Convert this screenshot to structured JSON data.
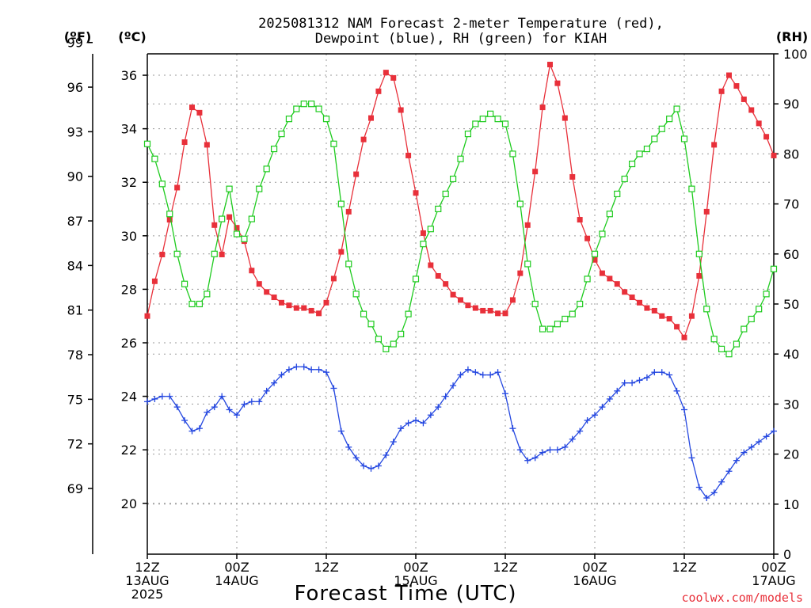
{
  "chart_data": {
    "type": "line",
    "title_line1": "2025081312 NAM Forecast 2-meter Temperature (red),",
    "title_line2": "Dewpoint (blue), RH (green) for KIAH",
    "unit_f": "(ºF)",
    "unit_c": "(ºC)",
    "unit_rh": "(RH)",
    "xlabel": "Forecast Time (UTC)",
    "credit": "coolwx.com/models",
    "x_hours": [
      0,
      1,
      2,
      3,
      4,
      5,
      6,
      7,
      8,
      9,
      10,
      11,
      12,
      13,
      14,
      15,
      16,
      17,
      18,
      19,
      20,
      21,
      22,
      23,
      24,
      25,
      26,
      27,
      28,
      29,
      30,
      31,
      32,
      33,
      34,
      35,
      36,
      37,
      38,
      39,
      40,
      41,
      42,
      43,
      44,
      45,
      46,
      47,
      48,
      49,
      50,
      51,
      52,
      53,
      54,
      55,
      56,
      57,
      58,
      59,
      60,
      61,
      62,
      63,
      64,
      65,
      66,
      67,
      68,
      69,
      70,
      71,
      72,
      73,
      74,
      75,
      76,
      77,
      78,
      79,
      80,
      81,
      82,
      83,
      84
    ],
    "x_range_hours": [
      0,
      84
    ],
    "x_ticks": [
      {
        "hour": 0,
        "line1": "12Z",
        "line2": "13AUG",
        "line3": "2025"
      },
      {
        "hour": 12,
        "line1": "00Z",
        "line2": "14AUG",
        "line3": ""
      },
      {
        "hour": 24,
        "line1": "12Z",
        "line2": "",
        "line3": ""
      },
      {
        "hour": 36,
        "line1": "00Z",
        "line2": "15AUG",
        "line3": ""
      },
      {
        "hour": 48,
        "line1": "12Z",
        "line2": "",
        "line3": ""
      },
      {
        "hour": 60,
        "line1": "00Z",
        "line2": "16AUG",
        "line3": ""
      },
      {
        "hour": 72,
        "line1": "12Z",
        "line2": "",
        "line3": ""
      },
      {
        "hour": 84,
        "line1": "00Z",
        "line2": "17AUG",
        "line3": ""
      }
    ],
    "y_left_c_range": [
      18.1,
      36.8
    ],
    "y_left_c_ticks": [
      "20",
      "22",
      "24",
      "26",
      "28",
      "30",
      "32",
      "34",
      "36"
    ],
    "y_left_f_ticks": [
      "69",
      "72",
      "75",
      "78",
      "81",
      "84",
      "87",
      "90",
      "93",
      "96",
      "99"
    ],
    "y_right_rh_range": [
      0,
      100
    ],
    "y_right_rh_ticks": [
      "0",
      "10",
      "20",
      "30",
      "40",
      "50",
      "60",
      "70",
      "80",
      "90",
      "100"
    ],
    "grid": true,
    "series": [
      {
        "name": "Temperature",
        "unit": "C",
        "color": "#e8303a",
        "marker": "filled-square",
        "values": [
          27.0,
          28.3,
          29.3,
          30.6,
          31.8,
          33.5,
          34.8,
          34.6,
          33.4,
          30.4,
          29.3,
          30.7,
          30.3,
          29.8,
          28.7,
          28.2,
          27.9,
          27.7,
          27.5,
          27.4,
          27.3,
          27.3,
          27.2,
          27.1,
          27.5,
          28.4,
          29.4,
          30.9,
          32.3,
          33.6,
          34.4,
          35.4,
          36.1,
          35.9,
          34.7,
          33.0,
          31.6,
          30.1,
          28.9,
          28.5,
          28.2,
          27.8,
          27.6,
          27.4,
          27.3,
          27.2,
          27.2,
          27.1,
          27.1,
          27.6,
          28.6,
          30.4,
          32.4,
          34.8,
          36.4,
          35.7,
          34.4,
          32.2,
          30.6,
          29.9,
          29.1,
          28.6,
          28.4,
          28.2,
          27.9,
          27.7,
          27.5,
          27.3,
          27.2,
          27.0,
          26.9,
          26.6,
          26.2,
          27.0,
          28.5,
          30.9,
          33.4,
          35.4,
          36.0,
          35.6,
          35.1,
          34.7,
          34.2,
          33.7,
          33.0
        ]
      },
      {
        "name": "Dewpoint",
        "unit": "C",
        "color": "#2447e0",
        "marker": "plus",
        "values": [
          23.8,
          23.9,
          24.0,
          24.0,
          23.6,
          23.1,
          22.7,
          22.8,
          23.4,
          23.6,
          24.0,
          23.5,
          23.3,
          23.7,
          23.8,
          23.8,
          24.2,
          24.5,
          24.8,
          25.0,
          25.1,
          25.1,
          25.0,
          25.0,
          24.9,
          24.3,
          22.7,
          22.1,
          21.7,
          21.4,
          21.3,
          21.4,
          21.8,
          22.3,
          22.8,
          23.0,
          23.1,
          23.0,
          23.3,
          23.6,
          24.0,
          24.4,
          24.8,
          25.0,
          24.9,
          24.8,
          24.8,
          24.9,
          24.1,
          22.8,
          22.0,
          21.6,
          21.7,
          21.9,
          22.0,
          22.0,
          22.1,
          22.4,
          22.7,
          23.1,
          23.3,
          23.6,
          23.9,
          24.2,
          24.5,
          24.5,
          24.6,
          24.7,
          24.9,
          24.9,
          24.8,
          24.2,
          23.5,
          21.7,
          20.6,
          20.2,
          20.4,
          20.8,
          21.2,
          21.6,
          21.9,
          22.1,
          22.3,
          22.5,
          22.7
        ]
      },
      {
        "name": "RH",
        "unit": "%",
        "color": "#1ecb1e",
        "marker": "open-square",
        "values": [
          82.0,
          79.0,
          74.0,
          68.0,
          60.0,
          54.0,
          50.0,
          50.0,
          52.0,
          60.0,
          67.0,
          73.0,
          64.0,
          63.0,
          67.0,
          73.0,
          77.0,
          81.0,
          84.0,
          87.0,
          89.0,
          90.0,
          90.0,
          89.0,
          87.0,
          82.0,
          70.0,
          58.0,
          52.0,
          48.0,
          46.0,
          43.0,
          41.0,
          42.0,
          44.0,
          48.0,
          55.0,
          62.0,
          65.0,
          69.0,
          72.0,
          75.0,
          79.0,
          84.0,
          86.0,
          87.0,
          88.0,
          87.0,
          86.0,
          80.0,
          70.0,
          58.0,
          50.0,
          45.0,
          45.0,
          46.0,
          47.0,
          48.0,
          50.0,
          55.0,
          60.0,
          64.0,
          68.0,
          72.0,
          75.0,
          78.0,
          80.0,
          81.0,
          83.0,
          85.0,
          87.0,
          89.0,
          83.0,
          73.0,
          60.0,
          49.0,
          43.0,
          41.0,
          40.0,
          42.0,
          45.0,
          47.0,
          49.0,
          52.0,
          57.0
        ]
      }
    ]
  }
}
